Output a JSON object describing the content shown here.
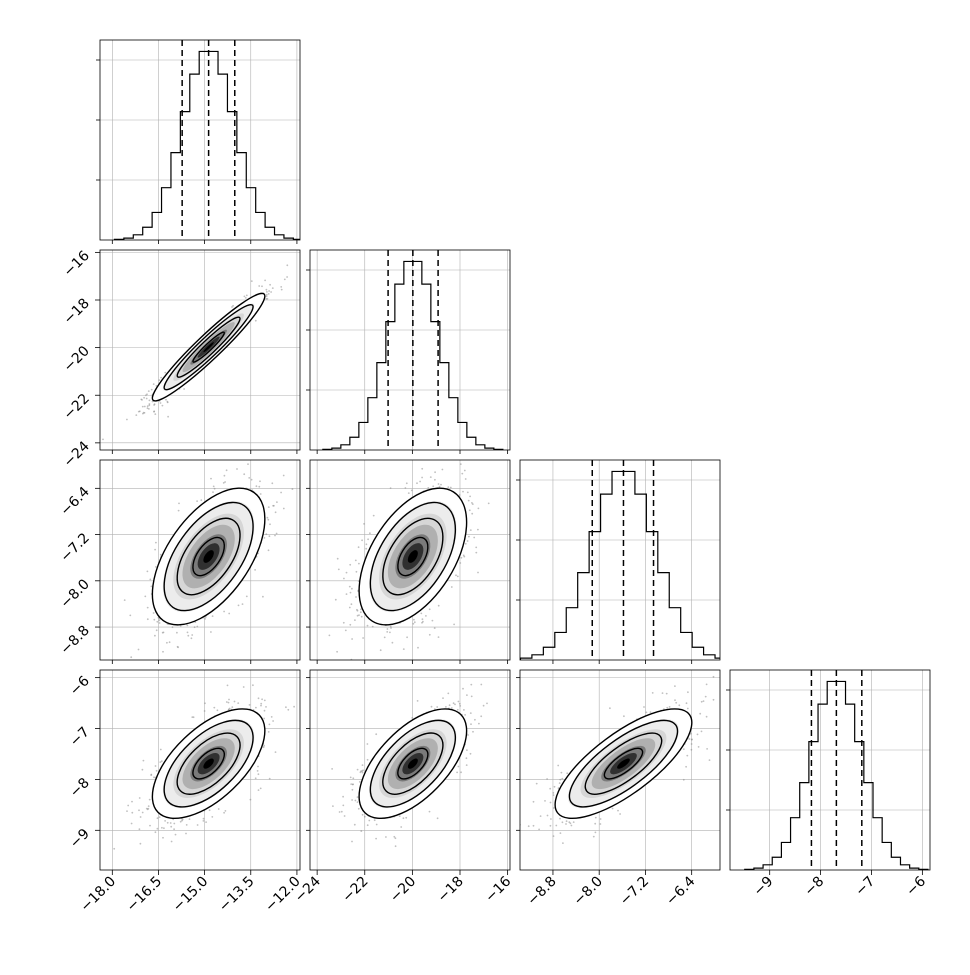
{
  "chart_data": {
    "type": "corner",
    "parameters": 4,
    "grid": true,
    "colors": {
      "line": "#000000",
      "points": "#8c8c8c",
      "grid": "#b0b0b0"
    },
    "axes": [
      {
        "range": [
          -18.4,
          -11.9
        ],
        "ticks": [
          -18.0,
          -16.5,
          -15.0,
          -13.5,
          -12.0
        ],
        "tick_labels": [
          "−18.0",
          "−16.5",
          "−15.0",
          "−13.5",
          "−12.0"
        ],
        "mean": -14.87,
        "sd": 0.85,
        "quantiles": [
          -15.73,
          -14.87,
          -14.02
        ]
      },
      {
        "range": [
          -24.3,
          -15.9
        ],
        "ticks": [
          -24,
          -22,
          -20,
          -18,
          -16
        ],
        "tick_labels": [
          "−24",
          "−22",
          "−20",
          "−18",
          "−16"
        ],
        "mean": -19.98,
        "sd": 1.05,
        "quantiles": [
          -21.02,
          -19.98,
          -18.92
        ]
      },
      {
        "range": [
          -9.37,
          -5.91
        ],
        "ticks": [
          -8.8,
          -8.0,
          -7.2,
          -6.4
        ],
        "tick_labels": [
          "−8.8",
          "−8.0",
          "−7.2",
          "−6.4"
        ],
        "mean": -7.58,
        "sd": 0.55,
        "quantiles": [
          -8.12,
          -7.58,
          -7.06
        ]
      },
      {
        "range": [
          -9.78,
          -5.85
        ],
        "ticks": [
          -9,
          -8,
          -7,
          -6
        ],
        "tick_labels": [
          "−9",
          "−8",
          "−7",
          "−6"
        ],
        "mean": -7.69,
        "sd": 0.5,
        "quantiles": [
          -8.18,
          -7.69,
          -7.19
        ]
      }
    ],
    "correlations": {
      "1-0": 0.95,
      "2-0": 0.55,
      "2-1": 0.5,
      "3-0": 0.6,
      "3-1": 0.6,
      "3-2": 0.75
    },
    "histogram_bins": 20,
    "scatter_samples": 1200
  }
}
